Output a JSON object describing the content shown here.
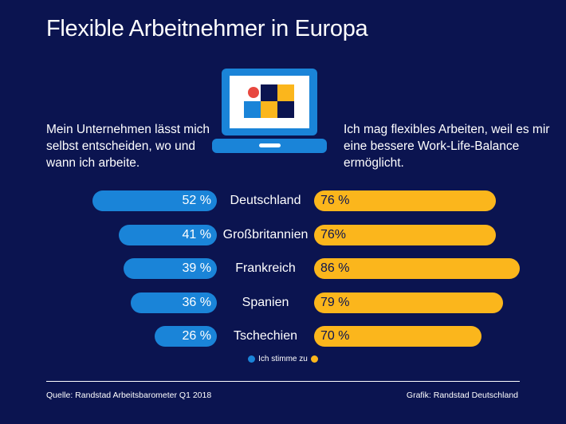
{
  "title": "Flexible Arbeitnehmer in Europa",
  "left_caption": "Mein Unternehmen lässt mich selbst entscheiden, wo und wann ich arbeite.",
  "right_caption": "Ich mag flexibles Arbeiten, weil es mir eine bessere Work-Life-Balance ermöglicht.",
  "legend_label": "Ich stimme zu",
  "source": "Quelle: Randstad Arbeitsbarometer Q1 2018",
  "credit": "Grafik: Randstad Deutschland",
  "colors": {
    "background": "#0b1450",
    "left_series": "#1a84d8",
    "right_series": "#fbb61c",
    "laptop_accent": "#e8483f"
  },
  "icon": "laptop-icon",
  "chart_data": {
    "type": "bar",
    "categories": [
      "Deutschland",
      "Großbritannien",
      "Frankreich",
      "Spanien",
      "Tschechien"
    ],
    "series": [
      {
        "values": [
          52,
          41,
          39,
          36,
          26
        ],
        "labels": [
          "52 %",
          "41 %",
          "39 %",
          "36 %",
          "26 %"
        ]
      },
      {
        "values": [
          76,
          76,
          86,
          79,
          70
        ],
        "labels": [
          "76 %",
          "76%",
          "86 %",
          "79 %",
          "70 %"
        ]
      }
    ]
  }
}
